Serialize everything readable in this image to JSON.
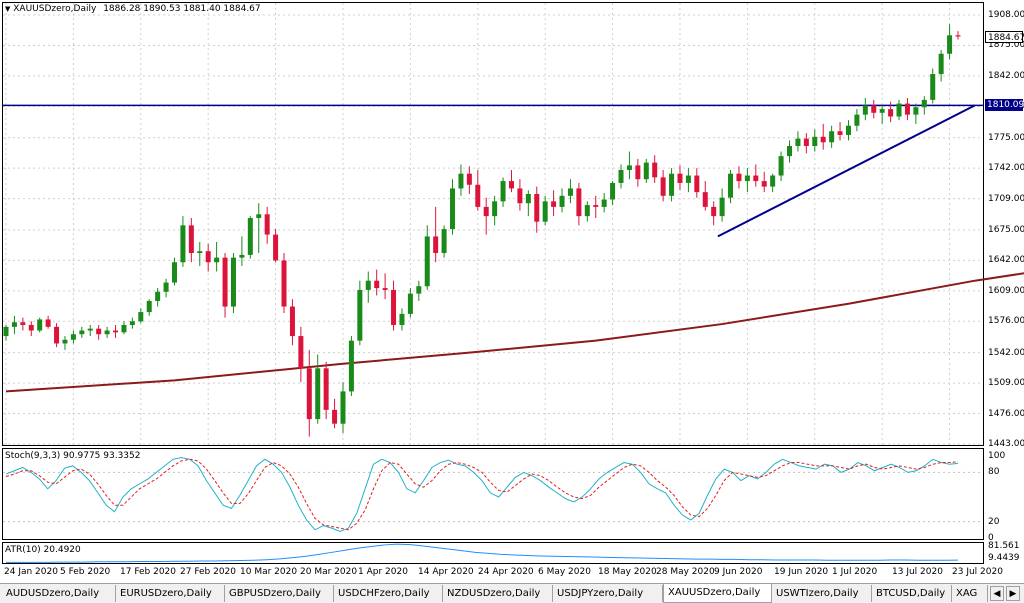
{
  "chart_title": "XAUUSDzero,Daily",
  "ohlc_text": "1886.28 1890.53 1881.40 1884.67",
  "price_label": "1884.67",
  "hline_label": "1810.09",
  "stoch_label": "Stoch(9,3,3) 90.9775 93.3352",
  "atr_label": "ATR(10) 20.4920",
  "y_ticks": [
    "1908.00",
    "1875.00",
    "1842.00",
    "1809.00",
    "1775.00",
    "1742.00",
    "1709.00",
    "1675.00",
    "1642.00",
    "1609.00",
    "1576.00",
    "1542.00",
    "1509.00",
    "1476.00",
    "1443.00"
  ],
  "stoch_ticks": [
    "100",
    "80",
    "20",
    "0"
  ],
  "atr_ticks": [
    "81.561",
    "9.4439"
  ],
  "x_labels": [
    "24 Jan 2020",
    "5 Feb 2020",
    "17 Feb 2020",
    "27 Feb 2020",
    "10 Mar 2020",
    "20 Mar 2020",
    "1 Apr 2020",
    "14 Apr 2020",
    "24 Apr 2020",
    "6 May 2020",
    "18 May 2020",
    "28 May 2020",
    "9 Jun 2020",
    "19 Jun 2020",
    "1 Jul 2020",
    "13 Jul 2020",
    "23 Jul 2020"
  ],
  "tabs": [
    "AUDUSDzero,Daily",
    "EURUSDzero,Daily",
    "GBPUSDzero,Daily",
    "USDCHFzero,Daily",
    "NZDUSDzero,Daily",
    "USDJPYzero,Daily",
    "XAUUSDzero,Daily",
    "USWTIzero,Daily",
    "BTCUSD,Daily",
    "XAG"
  ],
  "active_tab_index": 6,
  "colors": {
    "bull": "#1a8a1a",
    "bear": "#dc143c",
    "ma": "#8b1a1a",
    "hline": "#00008b",
    "trend": "#00008b",
    "stoch_main": "#20b2c8",
    "stoch_signal": "#e02020",
    "atr": "#1e90ff"
  },
  "chart_data": {
    "type": "candlestick",
    "symbol": "XAUUSDzero",
    "timeframe": "Daily",
    "ylim": [
      1443,
      1908
    ],
    "horizontal_line": 1810.09,
    "candles": [
      {
        "o": 1560,
        "h": 1572,
        "l": 1555,
        "c": 1570
      },
      {
        "o": 1570,
        "h": 1582,
        "l": 1562,
        "c": 1575
      },
      {
        "o": 1575,
        "h": 1580,
        "l": 1566,
        "c": 1572
      },
      {
        "o": 1572,
        "h": 1576,
        "l": 1560,
        "c": 1566
      },
      {
        "o": 1566,
        "h": 1580,
        "l": 1564,
        "c": 1578
      },
      {
        "o": 1578,
        "h": 1582,
        "l": 1568,
        "c": 1570
      },
      {
        "o": 1570,
        "h": 1574,
        "l": 1548,
        "c": 1552
      },
      {
        "o": 1552,
        "h": 1560,
        "l": 1545,
        "c": 1556
      },
      {
        "o": 1556,
        "h": 1566,
        "l": 1552,
        "c": 1562
      },
      {
        "o": 1562,
        "h": 1570,
        "l": 1558,
        "c": 1566
      },
      {
        "o": 1566,
        "h": 1572,
        "l": 1560,
        "c": 1568
      },
      {
        "o": 1568,
        "h": 1572,
        "l": 1556,
        "c": 1562
      },
      {
        "o": 1562,
        "h": 1570,
        "l": 1558,
        "c": 1566
      },
      {
        "o": 1566,
        "h": 1572,
        "l": 1558,
        "c": 1564
      },
      {
        "o": 1564,
        "h": 1576,
        "l": 1562,
        "c": 1572
      },
      {
        "o": 1572,
        "h": 1580,
        "l": 1568,
        "c": 1576
      },
      {
        "o": 1576,
        "h": 1590,
        "l": 1574,
        "c": 1586
      },
      {
        "o": 1586,
        "h": 1600,
        "l": 1582,
        "c": 1598
      },
      {
        "o": 1598,
        "h": 1612,
        "l": 1592,
        "c": 1608
      },
      {
        "o": 1608,
        "h": 1622,
        "l": 1602,
        "c": 1618
      },
      {
        "o": 1618,
        "h": 1645,
        "l": 1615,
        "c": 1640
      },
      {
        "o": 1640,
        "h": 1690,
        "l": 1635,
        "c": 1680
      },
      {
        "o": 1680,
        "h": 1688,
        "l": 1640,
        "c": 1650
      },
      {
        "o": 1650,
        "h": 1662,
        "l": 1636,
        "c": 1652
      },
      {
        "o": 1652,
        "h": 1660,
        "l": 1630,
        "c": 1640
      },
      {
        "o": 1640,
        "h": 1662,
        "l": 1630,
        "c": 1645
      },
      {
        "o": 1645,
        "h": 1650,
        "l": 1580,
        "c": 1592
      },
      {
        "o": 1592,
        "h": 1650,
        "l": 1585,
        "c": 1645
      },
      {
        "o": 1645,
        "h": 1668,
        "l": 1636,
        "c": 1648
      },
      {
        "o": 1648,
        "h": 1690,
        "l": 1644,
        "c": 1688
      },
      {
        "o": 1688,
        "h": 1704,
        "l": 1650,
        "c": 1692
      },
      {
        "o": 1692,
        "h": 1700,
        "l": 1660,
        "c": 1670
      },
      {
        "o": 1670,
        "h": 1676,
        "l": 1640,
        "c": 1642
      },
      {
        "o": 1642,
        "h": 1650,
        "l": 1585,
        "c": 1592
      },
      {
        "o": 1592,
        "h": 1600,
        "l": 1550,
        "c": 1560
      },
      {
        "o": 1560,
        "h": 1570,
        "l": 1510,
        "c": 1525
      },
      {
        "o": 1525,
        "h": 1545,
        "l": 1451,
        "c": 1470
      },
      {
        "o": 1470,
        "h": 1540,
        "l": 1465,
        "c": 1525
      },
      {
        "o": 1525,
        "h": 1532,
        "l": 1470,
        "c": 1480
      },
      {
        "o": 1480,
        "h": 1492,
        "l": 1460,
        "c": 1465
      },
      {
        "o": 1465,
        "h": 1510,
        "l": 1455,
        "c": 1500
      },
      {
        "o": 1500,
        "h": 1560,
        "l": 1495,
        "c": 1555
      },
      {
        "o": 1555,
        "h": 1620,
        "l": 1550,
        "c": 1610
      },
      {
        "o": 1610,
        "h": 1630,
        "l": 1596,
        "c": 1620
      },
      {
        "o": 1620,
        "h": 1632,
        "l": 1604,
        "c": 1612
      },
      {
        "o": 1612,
        "h": 1628,
        "l": 1600,
        "c": 1610
      },
      {
        "o": 1610,
        "h": 1620,
        "l": 1566,
        "c": 1572
      },
      {
        "o": 1572,
        "h": 1590,
        "l": 1566,
        "c": 1584
      },
      {
        "o": 1584,
        "h": 1612,
        "l": 1580,
        "c": 1606
      },
      {
        "o": 1606,
        "h": 1620,
        "l": 1598,
        "c": 1614
      },
      {
        "o": 1614,
        "h": 1680,
        "l": 1610,
        "c": 1668
      },
      {
        "o": 1668,
        "h": 1700,
        "l": 1640,
        "c": 1650
      },
      {
        "o": 1650,
        "h": 1680,
        "l": 1645,
        "c": 1676
      },
      {
        "o": 1676,
        "h": 1730,
        "l": 1670,
        "c": 1720
      },
      {
        "o": 1720,
        "h": 1746,
        "l": 1712,
        "c": 1736
      },
      {
        "o": 1736,
        "h": 1744,
        "l": 1714,
        "c": 1724
      },
      {
        "o": 1724,
        "h": 1740,
        "l": 1696,
        "c": 1700
      },
      {
        "o": 1700,
        "h": 1710,
        "l": 1670,
        "c": 1690
      },
      {
        "o": 1690,
        "h": 1712,
        "l": 1680,
        "c": 1706
      },
      {
        "o": 1706,
        "h": 1732,
        "l": 1700,
        "c": 1728
      },
      {
        "o": 1728,
        "h": 1740,
        "l": 1716,
        "c": 1720
      },
      {
        "o": 1720,
        "h": 1730,
        "l": 1696,
        "c": 1704
      },
      {
        "o": 1704,
        "h": 1718,
        "l": 1690,
        "c": 1714
      },
      {
        "o": 1714,
        "h": 1722,
        "l": 1672,
        "c": 1684
      },
      {
        "o": 1684,
        "h": 1712,
        "l": 1680,
        "c": 1706
      },
      {
        "o": 1706,
        "h": 1718,
        "l": 1690,
        "c": 1700
      },
      {
        "o": 1700,
        "h": 1720,
        "l": 1694,
        "c": 1712
      },
      {
        "o": 1712,
        "h": 1730,
        "l": 1704,
        "c": 1720
      },
      {
        "o": 1720,
        "h": 1726,
        "l": 1680,
        "c": 1690
      },
      {
        "o": 1690,
        "h": 1706,
        "l": 1684,
        "c": 1702
      },
      {
        "o": 1702,
        "h": 1712,
        "l": 1688,
        "c": 1700
      },
      {
        "o": 1700,
        "h": 1715,
        "l": 1694,
        "c": 1708
      },
      {
        "o": 1708,
        "h": 1728,
        "l": 1702,
        "c": 1726
      },
      {
        "o": 1726,
        "h": 1746,
        "l": 1720,
        "c": 1740
      },
      {
        "o": 1740,
        "h": 1760,
        "l": 1730,
        "c": 1745
      },
      {
        "o": 1745,
        "h": 1752,
        "l": 1722,
        "c": 1730
      },
      {
        "o": 1730,
        "h": 1752,
        "l": 1726,
        "c": 1748
      },
      {
        "o": 1748,
        "h": 1756,
        "l": 1726,
        "c": 1732
      },
      {
        "o": 1732,
        "h": 1740,
        "l": 1706,
        "c": 1712
      },
      {
        "o": 1712,
        "h": 1742,
        "l": 1706,
        "c": 1736
      },
      {
        "o": 1736,
        "h": 1745,
        "l": 1718,
        "c": 1726
      },
      {
        "o": 1726,
        "h": 1742,
        "l": 1716,
        "c": 1734
      },
      {
        "o": 1734,
        "h": 1742,
        "l": 1710,
        "c": 1716
      },
      {
        "o": 1716,
        "h": 1728,
        "l": 1696,
        "c": 1700
      },
      {
        "o": 1700,
        "h": 1706,
        "l": 1680,
        "c": 1690
      },
      {
        "o": 1690,
        "h": 1720,
        "l": 1684,
        "c": 1710
      },
      {
        "o": 1710,
        "h": 1740,
        "l": 1704,
        "c": 1736
      },
      {
        "o": 1736,
        "h": 1744,
        "l": 1720,
        "c": 1728
      },
      {
        "o": 1728,
        "h": 1742,
        "l": 1716,
        "c": 1734
      },
      {
        "o": 1734,
        "h": 1746,
        "l": 1722,
        "c": 1728
      },
      {
        "o": 1728,
        "h": 1738,
        "l": 1716,
        "c": 1722
      },
      {
        "o": 1722,
        "h": 1736,
        "l": 1716,
        "c": 1734
      },
      {
        "o": 1734,
        "h": 1760,
        "l": 1728,
        "c": 1755
      },
      {
        "o": 1755,
        "h": 1772,
        "l": 1748,
        "c": 1766
      },
      {
        "o": 1766,
        "h": 1782,
        "l": 1760,
        "c": 1774
      },
      {
        "o": 1774,
        "h": 1780,
        "l": 1758,
        "c": 1766
      },
      {
        "o": 1766,
        "h": 1784,
        "l": 1760,
        "c": 1776
      },
      {
        "o": 1776,
        "h": 1790,
        "l": 1762,
        "c": 1770
      },
      {
        "o": 1770,
        "h": 1788,
        "l": 1764,
        "c": 1782
      },
      {
        "o": 1782,
        "h": 1792,
        "l": 1772,
        "c": 1778
      },
      {
        "o": 1778,
        "h": 1794,
        "l": 1772,
        "c": 1788
      },
      {
        "o": 1788,
        "h": 1806,
        "l": 1782,
        "c": 1800
      },
      {
        "o": 1800,
        "h": 1818,
        "l": 1794,
        "c": 1810
      },
      {
        "o": 1810,
        "h": 1816,
        "l": 1796,
        "c": 1802
      },
      {
        "o": 1802,
        "h": 1810,
        "l": 1790,
        "c": 1806
      },
      {
        "o": 1806,
        "h": 1814,
        "l": 1792,
        "c": 1798
      },
      {
        "o": 1798,
        "h": 1816,
        "l": 1794,
        "c": 1812
      },
      {
        "o": 1812,
        "h": 1818,
        "l": 1794,
        "c": 1800
      },
      {
        "o": 1800,
        "h": 1812,
        "l": 1790,
        "c": 1808
      },
      {
        "o": 1808,
        "h": 1820,
        "l": 1800,
        "c": 1816
      },
      {
        "o": 1816,
        "h": 1850,
        "l": 1812,
        "c": 1844
      },
      {
        "o": 1844,
        "h": 1870,
        "l": 1836,
        "c": 1866
      },
      {
        "o": 1866,
        "h": 1898,
        "l": 1860,
        "c": 1886
      },
      {
        "o": 1886,
        "h": 1890.53,
        "l": 1881.4,
        "c": 1884.67
      }
    ],
    "moving_average": [
      [
        0,
        1500
      ],
      [
        20,
        1512
      ],
      [
        40,
        1530
      ],
      [
        55,
        1542
      ],
      [
        70,
        1555
      ],
      [
        85,
        1573
      ],
      [
        100,
        1595
      ],
      [
        115,
        1620
      ],
      [
        128,
        1638
      ],
      [
        140,
        1655
      ],
      [
        150,
        1668
      ],
      [
        158,
        1680
      ],
      [
        164,
        1690
      ],
      [
        170,
        1702
      ],
      [
        174,
        1709
      ]
    ],
    "trendline": [
      [
        1675,
        1680
      ],
      [
        1810,
        1810
      ]
    ],
    "stochastic": {
      "main": [
        78,
        82,
        86,
        80,
        72,
        60,
        70,
        85,
        88,
        80,
        70,
        55,
        40,
        32,
        50,
        60,
        66,
        72,
        80,
        88,
        96,
        98,
        96,
        88,
        70,
        55,
        40,
        36,
        52,
        70,
        88,
        96,
        90,
        80,
        62,
        40,
        22,
        10,
        15,
        12,
        8,
        12,
        30,
        60,
        90,
        96,
        92,
        80,
        60,
        55,
        70,
        86,
        92,
        95,
        90,
        88,
        80,
        70,
        55,
        50,
        62,
        74,
        80,
        76,
        70,
        62,
        55,
        48,
        44,
        50,
        60,
        72,
        80,
        86,
        92,
        90,
        80,
        66,
        60,
        55,
        40,
        28,
        22,
        30,
        52,
        72,
        84,
        80,
        70,
        76,
        72,
        80,
        90,
        96,
        92,
        88,
        86,
        84,
        90,
        88,
        80,
        84,
        92,
        88,
        82,
        86,
        90,
        86,
        80,
        82,
        88,
        96,
        92,
        90,
        91
      ],
      "signal": [
        75,
        78,
        82,
        82,
        76,
        68,
        66,
        74,
        82,
        84,
        78,
        66,
        52,
        40,
        40,
        50,
        60,
        66,
        72,
        80,
        88,
        94,
        96,
        94,
        84,
        70,
        55,
        42,
        42,
        54,
        70,
        86,
        92,
        88,
        78,
        62,
        42,
        24,
        16,
        14,
        12,
        10,
        18,
        34,
        60,
        82,
        92,
        90,
        78,
        66,
        62,
        70,
        82,
        90,
        92,
        90,
        86,
        80,
        68,
        58,
        56,
        64,
        72,
        78,
        76,
        70,
        62,
        55,
        50,
        48,
        52,
        62,
        70,
        78,
        86,
        90,
        88,
        80,
        70,
        62,
        52,
        38,
        28,
        26,
        36,
        52,
        70,
        80,
        78,
        76,
        74,
        76,
        82,
        88,
        92,
        92,
        90,
        88,
        88,
        88,
        86,
        84,
        88,
        90,
        86,
        84,
        86,
        88,
        86,
        84,
        86,
        90,
        92,
        92,
        93
      ]
    },
    "atr": [
      12,
      12,
      12,
      12,
      13,
      13,
      13,
      14,
      14,
      14,
      15,
      15,
      15,
      16,
      16,
      17,
      17,
      18,
      19,
      20,
      22,
      25,
      30,
      35,
      42,
      50,
      58,
      66,
      72,
      78,
      81,
      79,
      74,
      68,
      62,
      56,
      50,
      46,
      42,
      40,
      38,
      36,
      35,
      34,
      33,
      32,
      31,
      30,
      29,
      28,
      27,
      26,
      25,
      24,
      24,
      23,
      23,
      22,
      22,
      21,
      21,
      21,
      21,
      20,
      20,
      20,
      20,
      20,
      21,
      21,
      20,
      20,
      20,
      20.49
    ]
  }
}
